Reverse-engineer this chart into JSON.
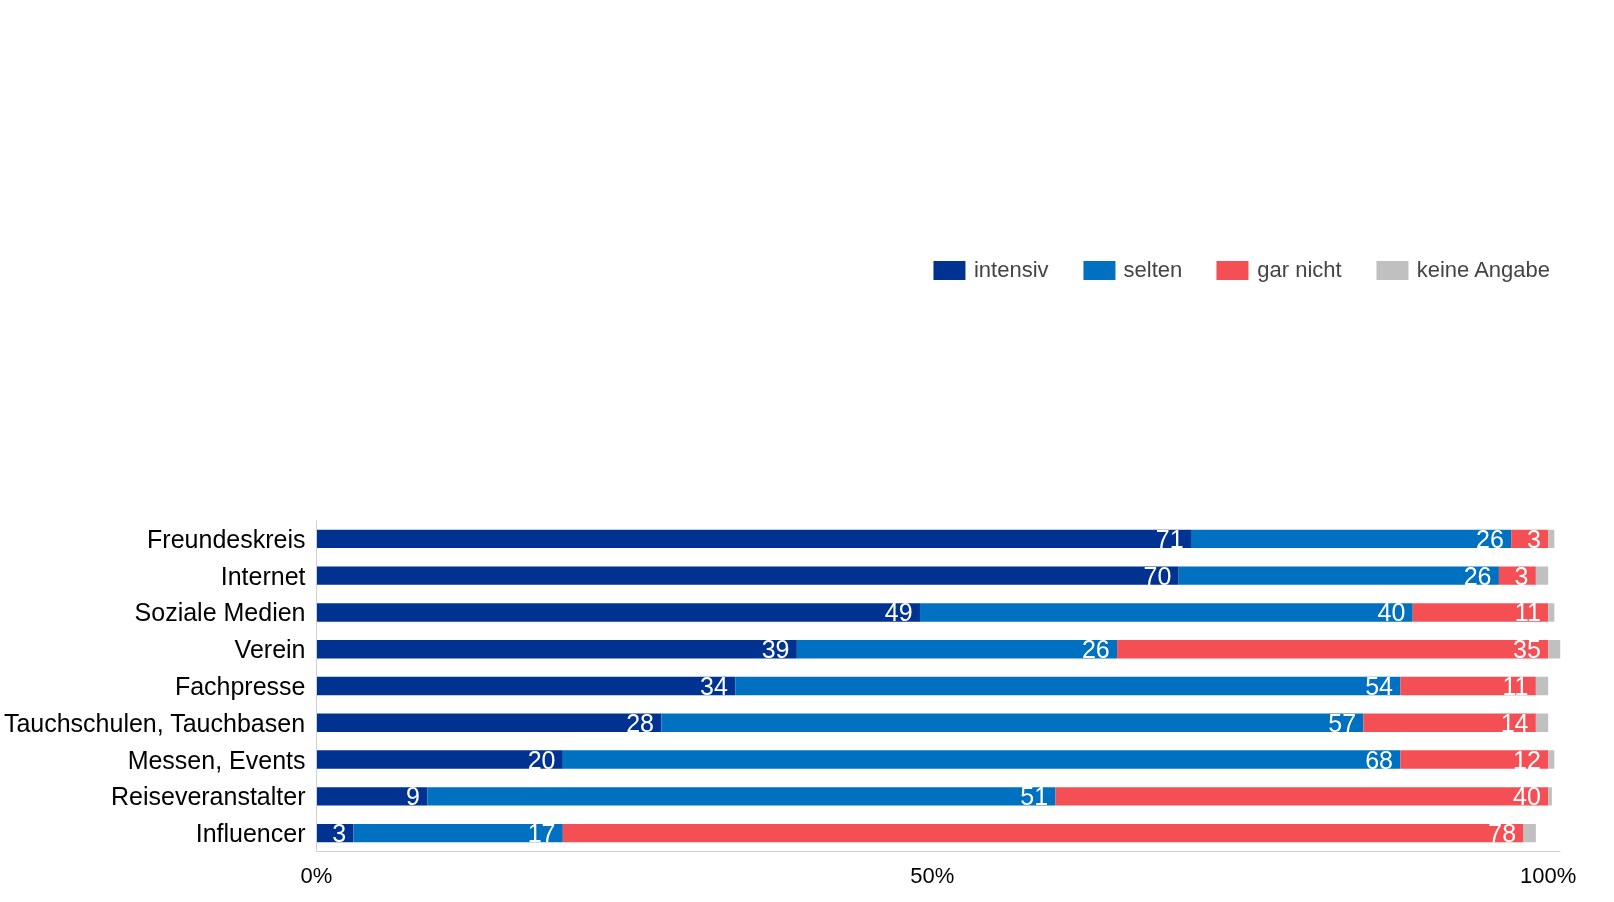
{
  "chart_data": {
    "type": "bar",
    "orientation": "horizontal",
    "stacked": true,
    "categories": [
      "Freundeskreis",
      "Internet",
      "Soziale Medien",
      "Verein",
      "Fachpresse",
      "Tauchschulen, Tauchbasen",
      "Messen, Events",
      "Reiseveranstalter",
      "Influencer"
    ],
    "series": [
      {
        "name": "intensiv",
        "color": "#003391",
        "values": [
          71,
          70,
          49,
          39,
          34,
          28,
          20,
          9,
          3
        ],
        "value_labels": [
          "71",
          "70",
          "49",
          "39",
          "34",
          "28",
          "20",
          "9",
          "3"
        ]
      },
      {
        "name": "selten",
        "color": "#0070c0",
        "values": [
          26,
          26,
          40,
          26,
          54,
          57,
          68,
          51,
          17
        ],
        "value_labels": [
          "26",
          "26",
          "40",
          "26",
          "54",
          "57",
          "68",
          "51",
          "17"
        ]
      },
      {
        "name": "gar nicht",
        "color": "#f44f54",
        "values": [
          3,
          3,
          11,
          35,
          11,
          14,
          12,
          40,
          78
        ],
        "value_labels": [
          "3",
          "3",
          "11",
          "35",
          "11",
          "14",
          "12",
          "40",
          "78"
        ]
      },
      {
        "name": "keine Angabe",
        "color": "#c0c0c0",
        "values": [
          0.5,
          1,
          0.5,
          1,
          1,
          1,
          0.5,
          0.3,
          1
        ]
      }
    ],
    "xlim": [
      0,
      101
    ],
    "xticks": [
      {
        "value": 0,
        "label": "0%"
      },
      {
        "value": 50,
        "label": "50%"
      },
      {
        "value": 100,
        "label": "100%"
      }
    ],
    "grid": false,
    "legend": "top"
  }
}
